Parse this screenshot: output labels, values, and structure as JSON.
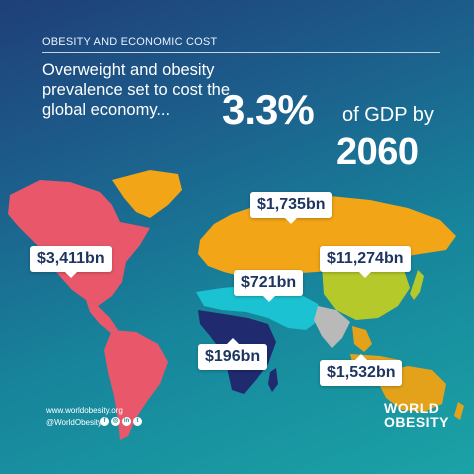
{
  "header": {
    "section_label": "OBESITY AND ECONOMIC COST"
  },
  "headline": {
    "lead": "Overweight and obesity prevalence set to cost the global economy...",
    "percent": "3.3%",
    "gdp_by": "of GDP by",
    "year": "2060"
  },
  "regions": [
    {
      "name": "americas",
      "value": "$3,411bn",
      "color": "#e8586a"
    },
    {
      "name": "europe-central-asia",
      "value": "$1,735bn",
      "color": "#f2a516"
    },
    {
      "name": "middle-east-north-africa",
      "value": "$721bn",
      "color": "#1bc2d2"
    },
    {
      "name": "east-asia",
      "value": "$11,274bn",
      "color": "#b6c92a"
    },
    {
      "name": "sub-saharan-africa",
      "value": "$196bn",
      "color": "#1f2b6e"
    },
    {
      "name": "southeast-asia-oceania",
      "value": "$1,532bn",
      "color": "#e3a21a"
    },
    {
      "name": "south-asia",
      "value": "",
      "color": "#b9b9b9"
    }
  ],
  "footer": {
    "website": "www.worldobesity.org",
    "handle": "@WorldObesity",
    "social_icons": [
      "facebook-icon",
      "instagram-icon",
      "linkedin-icon",
      "twitter-icon"
    ],
    "brand_line1": "WORLD",
    "brand_line2": "OBESITY"
  }
}
